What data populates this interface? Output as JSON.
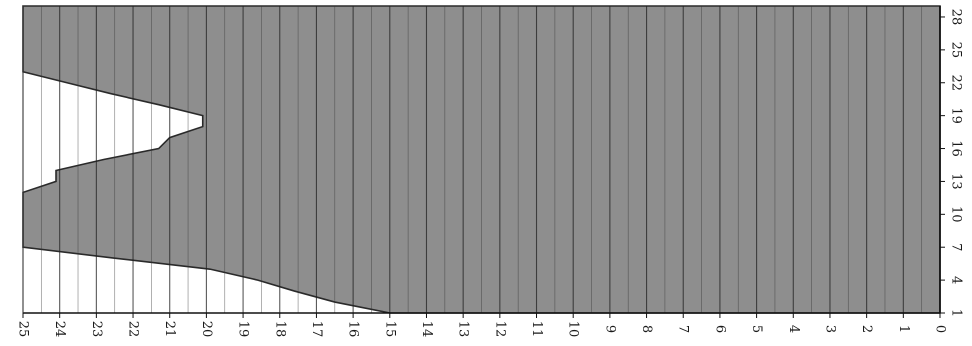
{
  "chart_data": {
    "type": "area",
    "orientation": "rotated 90 degrees counter-clockwise",
    "x_axis": {
      "ticks": [
        1,
        4,
        7,
        10,
        13,
        16,
        19,
        22,
        25,
        28
      ],
      "range": [
        1,
        29
      ]
    },
    "y_axis": {
      "ticks": [
        0,
        1,
        2,
        3,
        4,
        5,
        6,
        7,
        8,
        9,
        10,
        11,
        12,
        13,
        14,
        15,
        16,
        17,
        18,
        19,
        20,
        21,
        22,
        23,
        24,
        25
      ],
      "range": [
        0,
        25
      ]
    },
    "grid": "horizontal lines at every 0.5 units (shown vertical after rotation)",
    "series": [
      {
        "fill": "#8e8e8e",
        "x": [
          1,
          2,
          3,
          4,
          5,
          6,
          7,
          8,
          9,
          10,
          11,
          12,
          13,
          14,
          15,
          16,
          17,
          18,
          19,
          20,
          21,
          22,
          23,
          24,
          25,
          26,
          27,
          28,
          29
        ],
        "values": [
          15,
          16.5,
          17.6,
          18.6,
          19.9,
          22.5,
          25,
          25,
          25,
          25,
          25,
          25,
          24.1,
          24.1,
          22.8,
          21.3,
          21,
          20.1,
          20.1,
          21.3,
          22.6,
          23.8,
          25,
          25,
          25,
          25,
          25,
          25,
          25
        ]
      }
    ]
  }
}
